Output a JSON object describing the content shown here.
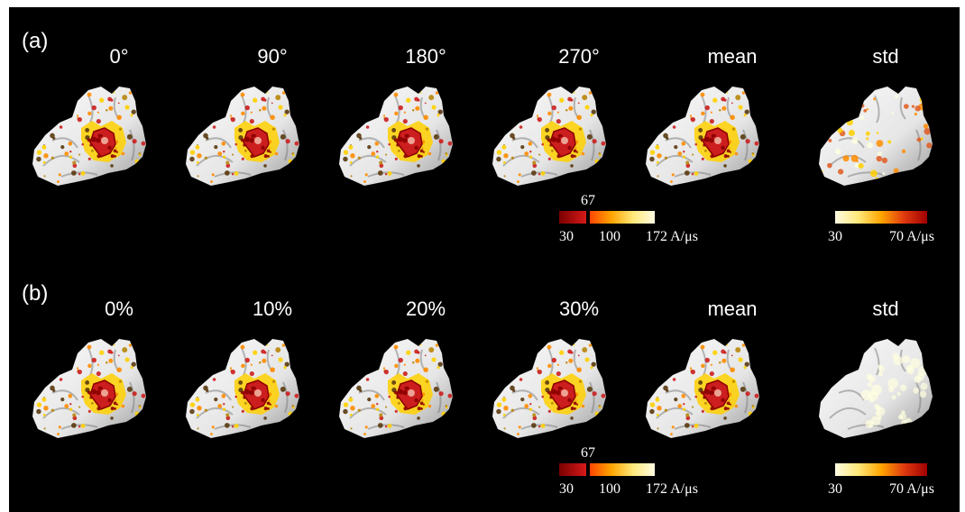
{
  "panels": [
    {
      "label": "(a)",
      "columns": [
        "0°",
        "90°",
        "180°",
        "270°",
        "mean",
        "std"
      ],
      "colorbar_main": {
        "mid_label": "67",
        "min_label": "30",
        "center_label": "100",
        "max_label": "172 A/μs"
      },
      "colorbar_std": {
        "min_label": "30",
        "max_label": "70 A/μs"
      }
    },
    {
      "label": "(b)",
      "columns": [
        "0%",
        "10%",
        "20%",
        "30%",
        "mean",
        "std"
      ],
      "colorbar_main": {
        "mid_label": "67",
        "min_label": "30",
        "center_label": "100",
        "max_label": "172 A/μs"
      },
      "colorbar_std": {
        "min_label": "30",
        "max_label": "70 A/μs"
      }
    }
  ],
  "colors": {
    "background": "#000000",
    "tissue": "#e6e6e6",
    "scale_dark_red": "#8b0000",
    "scale_red": "#cc1e1e",
    "scale_orange": "#ff8c00",
    "scale_yellow": "#ffd000",
    "scale_pale": "#ffffe0"
  },
  "icons": [
    "brain-surface-render"
  ]
}
